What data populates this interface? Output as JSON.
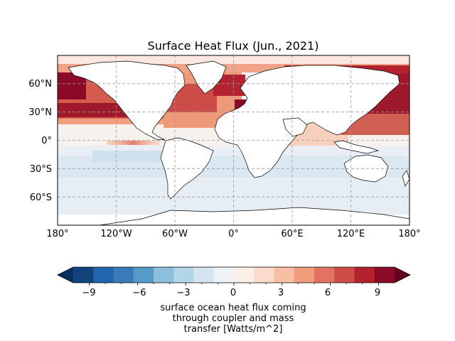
{
  "title": "Surface Heat Flux (Jun., 2021)",
  "map": {
    "projection": "PlateCarree",
    "lon_range": [
      -180,
      180
    ],
    "lat_range": [
      -90,
      90
    ],
    "grid": "dashed",
    "lon_ticks": [
      "180°",
      "120°W",
      "60°W",
      "0°",
      "60°E",
      "120°E",
      "180°"
    ],
    "lat_ticks": [
      "60°N",
      "30°N",
      "0°",
      "30°S",
      "60°S"
    ],
    "colormap": "RdBu_r",
    "land_color": "#ffffff",
    "coastline_color": "#000000"
  },
  "colorbar": {
    "ticks": [
      "−9",
      "−6",
      "−3",
      "0",
      "3",
      "6",
      "9"
    ],
    "tick_values": [
      -9,
      -6,
      -3,
      0,
      3,
      6,
      9
    ],
    "range": [
      -10,
      10
    ],
    "levels": 21,
    "extend": "both",
    "colors": [
      "#053061",
      "#11447c",
      "#2166ac",
      "#3a7bb9",
      "#569ac8",
      "#8bbfdc",
      "#b2d5e8",
      "#d4e5f0",
      "#eef2f5",
      "#fbeee6",
      "#fbdbcb",
      "#f7bfa3",
      "#f09c7b",
      "#e07361",
      "#cc4d48",
      "#b42230",
      "#8b0a27",
      "#67001f"
    ],
    "label_lines": [
      "surface ocean heat flux coming",
      "through coupler and mass",
      "transfer [Watts/m^2]"
    ]
  }
}
